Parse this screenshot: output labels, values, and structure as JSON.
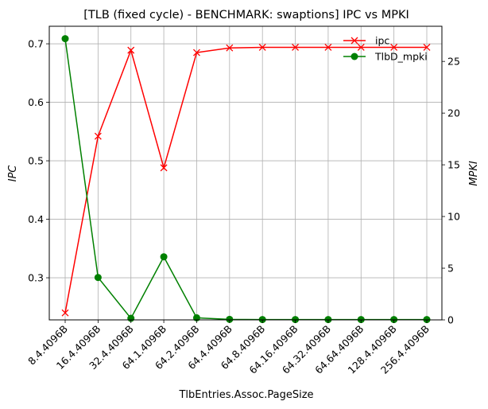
{
  "chart_data": {
    "type": "line",
    "title": "[TLB (fixed cycle) - BENCHMARK: swaptions]  IPC vs MPKI",
    "xlabel": "TlbEntries.Assoc.PageSize",
    "ylabel_left": "IPC",
    "ylabel_right": "MPKI",
    "categories": [
      "8.4.4096B",
      "16.4.4096B",
      "32.4.4096B",
      "64.1.4096B",
      "64.2.4096B",
      "64.4.4096B",
      "64.8.4096B",
      "64.16.4096B",
      "64.32.4096B",
      "64.64.4096B",
      "128.4.4096B",
      "256.4.4096B"
    ],
    "ylim_left": [
      0.228,
      0.73
    ],
    "ylim_right": [
      0,
      28.4
    ],
    "yticks_left": [
      0.3,
      0.4,
      0.5,
      0.6,
      0.7
    ],
    "yticks_right": [
      0,
      5,
      10,
      15,
      20,
      25
    ],
    "grid": true,
    "legend_position": "top-right",
    "series": [
      {
        "name": "ipc",
        "axis": "left",
        "color": "#ff0000",
        "marker": "x",
        "values": [
          0.24,
          0.542,
          0.689,
          0.488,
          0.685,
          0.693,
          0.694,
          0.694,
          0.694,
          0.694,
          0.694,
          0.694
        ]
      },
      {
        "name": "TlbD_mpki",
        "axis": "right",
        "color": "#008000",
        "marker": "o",
        "values": [
          27.2,
          4.1,
          0.15,
          6.1,
          0.2,
          0.05,
          0.03,
          0.03,
          0.03,
          0.03,
          0.03,
          0.03
        ]
      }
    ]
  }
}
